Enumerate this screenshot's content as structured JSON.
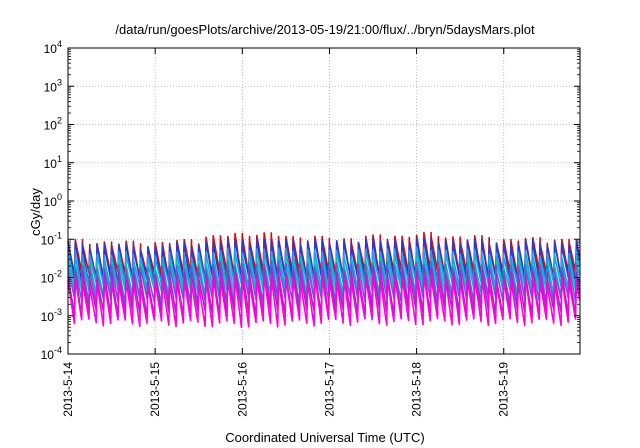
{
  "chart_data": {
    "type": "line",
    "title": "/data/run/goesPlots/archive/2013-05-19/21:00/flux/../bryn/5daysMars.plot",
    "xlabel": "Coordinated Universal Time (UTC)",
    "ylabel": "cGy/day",
    "y_scale": "log",
    "ylim": [
      0.0001,
      10000
    ],
    "xlim": [
      "2013-5-14",
      "2013-5-19 21:00"
    ],
    "grid": true,
    "y_ticks": [
      {
        "base": "10",
        "exp": "-4"
      },
      {
        "base": "10",
        "exp": "-3"
      },
      {
        "base": "10",
        "exp": "-2"
      },
      {
        "base": "10",
        "exp": "-1"
      },
      {
        "base": "10",
        "exp": "0"
      },
      {
        "base": "10",
        "exp": "1"
      },
      {
        "base": "10",
        "exp": "2"
      },
      {
        "base": "10",
        "exp": "3"
      },
      {
        "base": "10",
        "exp": "4"
      }
    ],
    "x_ticks": [
      "2013-5-14",
      "2013-5-15",
      "2013-5-16",
      "2013-5-17",
      "2013-5-18",
      "2013-5-19"
    ],
    "cycles_per_day": 12,
    "series": [
      {
        "color": "#e8000b",
        "peak": [
          0.08,
          0.07,
          0.13,
          0.09,
          0.12,
          0.09
        ],
        "trough": [
          0.012,
          0.011,
          0.012,
          0.012,
          0.013,
          0.012
        ]
      },
      {
        "color": "#1f3fd6",
        "peak": [
          0.07,
          0.06,
          0.09,
          0.08,
          0.09,
          0.075
        ],
        "trough": [
          0.008,
          0.008,
          0.009,
          0.009,
          0.009,
          0.009
        ]
      },
      {
        "color": "#1fa0e8",
        "peak": [
          0.04,
          0.035,
          0.05,
          0.045,
          0.05,
          0.04
        ],
        "trough": [
          0.006,
          0.006,
          0.006,
          0.006,
          0.007,
          0.006
        ]
      },
      {
        "color": "#00c8b4",
        "peak": [
          0.025,
          0.022,
          0.03,
          0.028,
          0.03,
          0.025
        ],
        "trough": [
          0.004,
          0.004,
          0.004,
          0.004,
          0.0045,
          0.004
        ]
      },
      {
        "color": "#6060d8",
        "peak": [
          0.018,
          0.016,
          0.022,
          0.02,
          0.022,
          0.018
        ],
        "trough": [
          0.0025,
          0.0024,
          0.0025,
          0.0025,
          0.0026,
          0.0025
        ]
      },
      {
        "color": "#b020c8",
        "peak": [
          0.012,
          0.011,
          0.015,
          0.013,
          0.015,
          0.012
        ],
        "trough": [
          0.0012,
          0.0011,
          0.0012,
          0.0012,
          0.0013,
          0.0012
        ]
      },
      {
        "color": "#ff00dc",
        "peak": [
          0.008,
          0.007,
          0.01,
          0.009,
          0.01,
          0.008
        ],
        "trough": [
          0.0007,
          0.00065,
          0.0006,
          0.0007,
          0.0007,
          0.0007
        ]
      }
    ]
  }
}
